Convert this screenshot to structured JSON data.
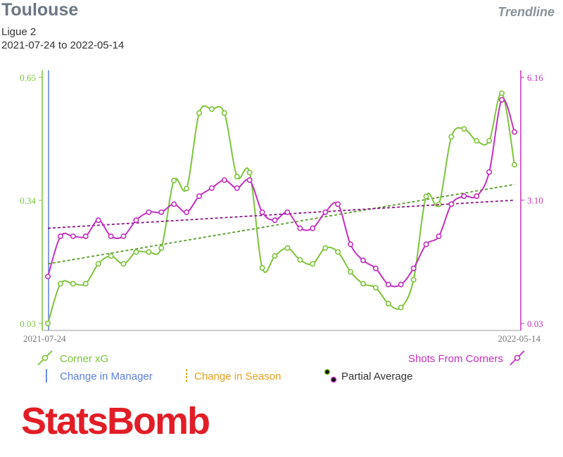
{
  "header": {
    "team": "Toulouse",
    "league": "Ligue 2",
    "date_range": "2021-07-24 to 2022-05-14",
    "view_label": "Trendline"
  },
  "legend": {
    "corner_xg": "Corner xG",
    "shots_from_corners": "Shots From Corners",
    "change_manager": "Change in Manager",
    "change_season": "Change in Season",
    "partial_average": "Partial Average"
  },
  "brand": "StatsBomb",
  "colors": {
    "left_series": "#7dc43a",
    "right_series": "#c42fbf",
    "left_trend": "#5a9a2a",
    "right_trend": "#8a1a86",
    "manager": "#5b7fe0",
    "season": "#e6a020",
    "logo": "#e21d26"
  },
  "chart_data": {
    "type": "line",
    "x_start_label": "2021-07-24",
    "x_end_label": "2022-05-14",
    "left_axis": {
      "min": 0.03,
      "max": 0.65,
      "ticks": [
        "0.65",
        "0.34",
        "0.03"
      ]
    },
    "right_axis": {
      "min": 0.03,
      "max": 6.16,
      "ticks": [
        "6.16",
        "3.10",
        "0.03"
      ]
    },
    "series": [
      {
        "name": "Corner xG",
        "axis": "left",
        "values": [
          0.03,
          0.13,
          0.13,
          0.13,
          0.18,
          0.2,
          0.18,
          0.21,
          0.21,
          0.22,
          0.39,
          0.37,
          0.56,
          0.57,
          0.56,
          0.4,
          0.41,
          0.17,
          0.2,
          0.22,
          0.19,
          0.18,
          0.22,
          0.21,
          0.16,
          0.13,
          0.12,
          0.08,
          0.07,
          0.14,
          0.35,
          0.33,
          0.5,
          0.52,
          0.49,
          0.49,
          0.61,
          0.43
        ],
        "trend": [
          0.18,
          0.38
        ]
      },
      {
        "name": "Shots From Corners",
        "axis": "right",
        "values": [
          1.2,
          2.2,
          2.2,
          2.2,
          2.6,
          2.2,
          2.2,
          2.6,
          2.8,
          2.8,
          3.0,
          2.8,
          3.2,
          3.4,
          3.6,
          3.4,
          3.6,
          2.8,
          2.6,
          2.8,
          2.4,
          2.4,
          2.8,
          3.0,
          2.0,
          1.6,
          1.4,
          1.0,
          1.0,
          1.4,
          2.0,
          2.2,
          3.0,
          3.2,
          3.2,
          3.8,
          5.6,
          4.8
        ],
        "trend": [
          2.4,
          3.1
        ]
      }
    ]
  }
}
